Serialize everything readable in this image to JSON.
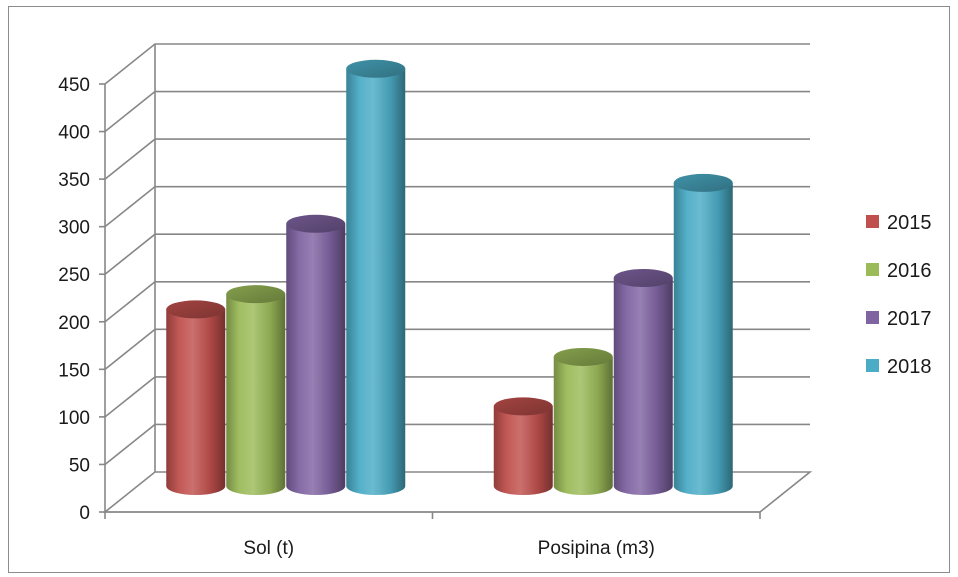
{
  "chart_data": {
    "type": "bar",
    "three_d": true,
    "bar_shape": "cylinder",
    "categories": [
      "Sol (t)",
      "Posipina (m3)"
    ],
    "series": [
      {
        "name": "2015",
        "color": "#c0504d",
        "values": [
          192,
          90
        ]
      },
      {
        "name": "2016",
        "color": "#9bbb59",
        "values": [
          208,
          142
        ]
      },
      {
        "name": "2017",
        "color": "#8064a2",
        "values": [
          282,
          225
        ]
      },
      {
        "name": "2018",
        "color": "#4bacc6",
        "values": [
          445,
          325
        ]
      }
    ],
    "yticks": [
      0,
      50,
      100,
      150,
      200,
      250,
      300,
      350,
      400,
      450
    ],
    "ylim": [
      0,
      450
    ],
    "grid": true,
    "legend": "right"
  }
}
